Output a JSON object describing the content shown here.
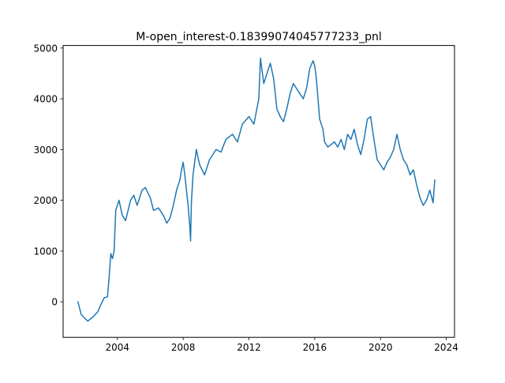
{
  "chart_data": {
    "type": "line",
    "title": "M-open_interest-0.18399074045777233_pnl",
    "xlabel": "",
    "ylabel": "",
    "xlim": [
      2000.7,
      2024.5
    ],
    "ylim": [
      -700,
      5050
    ],
    "x_ticks": [
      2004,
      2008,
      2012,
      2016,
      2020,
      2024
    ],
    "x_tick_labels": [
      "2004",
      "2008",
      "2012",
      "2016",
      "2020",
      "2024"
    ],
    "y_ticks": [
      0,
      1000,
      2000,
      3000,
      4000,
      5000
    ],
    "y_tick_labels": [
      "0",
      "1000",
      "2000",
      "3000",
      "4000",
      "5000"
    ],
    "grid": false,
    "legend": "none",
    "series": [
      {
        "color": "#1f77b4",
        "x": [
          2001.6,
          2001.8,
          2002.0,
          2002.2,
          2002.5,
          2002.8,
          2003.0,
          2003.2,
          2003.4,
          2003.5,
          2003.6,
          2003.7,
          2003.8,
          2003.9,
          2004.0,
          2004.1,
          2004.3,
          2004.5,
          2004.8,
          2005.0,
          2005.2,
          2005.5,
          2005.7,
          2006.0,
          2006.2,
          2006.5,
          2006.8,
          2007.0,
          2007.2,
          2007.4,
          2007.6,
          2007.8,
          2007.9,
          2008.0,
          2008.1,
          2008.2,
          2008.3,
          2008.4,
          2008.45,
          2008.5,
          2008.6,
          2008.8,
          2009.0,
          2009.3,
          2009.6,
          2010.0,
          2010.3,
          2010.6,
          2011.0,
          2011.3,
          2011.6,
          2012.0,
          2012.3,
          2012.6,
          2012.7,
          2012.9,
          2013.1,
          2013.3,
          2013.5,
          2013.7,
          2013.9,
          2014.1,
          2014.3,
          2014.5,
          2014.7,
          2014.9,
          2015.1,
          2015.3,
          2015.5,
          2015.7,
          2015.9,
          2016.0,
          2016.1,
          2016.3,
          2016.5,
          2016.6,
          2016.8,
          2017.0,
          2017.2,
          2017.4,
          2017.6,
          2017.8,
          2018.0,
          2018.2,
          2018.4,
          2018.6,
          2018.8,
          2019.0,
          2019.2,
          2019.4,
          2019.6,
          2019.8,
          2020.0,
          2020.2,
          2020.4,
          2020.6,
          2020.8,
          2021.0,
          2021.2,
          2021.4,
          2021.6,
          2021.8,
          2022.0,
          2022.2,
          2022.4,
          2022.6,
          2022.8,
          2023.0,
          2023.2,
          2023.3
        ],
        "y": [
          0,
          -250,
          -320,
          -380,
          -300,
          -200,
          -50,
          80,
          100,
          500,
          950,
          850,
          1000,
          1800,
          1900,
          2000,
          1700,
          1600,
          2000,
          2100,
          1900,
          2200,
          2250,
          2050,
          1800,
          1850,
          1700,
          1550,
          1650,
          1900,
          2200,
          2400,
          2600,
          2750,
          2500,
          2200,
          1900,
          1500,
          1200,
          1950,
          2500,
          3000,
          2700,
          2500,
          2800,
          3000,
          2950,
          3200,
          3300,
          3150,
          3500,
          3650,
          3500,
          4000,
          4800,
          4300,
          4500,
          4700,
          4400,
          3800,
          3650,
          3550,
          3800,
          4100,
          4300,
          4200,
          4100,
          4000,
          4200,
          4600,
          4750,
          4650,
          4400,
          3600,
          3400,
          3150,
          3050,
          3100,
          3150,
          3050,
          3200,
          3000,
          3300,
          3200,
          3400,
          3100,
          2900,
          3200,
          3600,
          3650,
          3200,
          2800,
          2700,
          2600,
          2750,
          2850,
          3000,
          3300,
          3000,
          2800,
          2700,
          2500,
          2600,
          2300,
          2050,
          1900,
          2000,
          2200,
          1950,
          2400
        ]
      }
    ]
  }
}
